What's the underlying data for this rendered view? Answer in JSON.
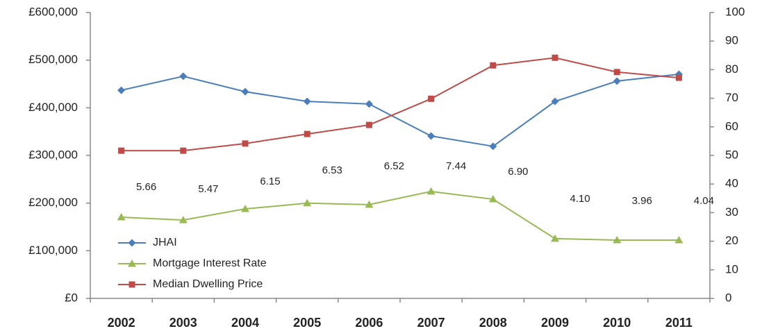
{
  "chart_data": {
    "type": "line",
    "categories": [
      "2002",
      "2003",
      "2004",
      "2005",
      "2006",
      "2007",
      "2008",
      "2009",
      "2010",
      "2011"
    ],
    "series": [
      {
        "name": "JHAI",
        "color": "#4a7ebb",
        "marker": "diamond",
        "axis": "y2",
        "values": [
          72.8,
          77.7,
          72.3,
          68.9,
          68.0,
          56.8,
          53.2,
          68.9,
          76.0,
          78.4
        ]
      },
      {
        "name": "Mortgage Interest Rate",
        "color": "#98b954",
        "marker": "triangle",
        "axis": "y2",
        "values": [
          28.4,
          27.4,
          31.3,
          33.3,
          32.8,
          37.4,
          34.7,
          20.9,
          20.4,
          20.4
        ]
      },
      {
        "name": "Median Dwelling Price",
        "color": "#be4b48",
        "marker": "square",
        "axis": "y",
        "values": [
          310000,
          310000,
          325000,
          345000,
          364000,
          419000,
          489000,
          505000,
          475000,
          463000
        ]
      }
    ],
    "annotations": [
      "5.66",
      "5.47",
      "6.15",
      "6.53",
      "6.52",
      "7.44",
      "6.90",
      "4.10",
      "3.96",
      "4.04"
    ],
    "ylim": [
      0,
      600000
    ],
    "yticks": [
      {
        "value": 0,
        "label": "£0"
      },
      {
        "value": 100000,
        "label": "£100,000"
      },
      {
        "value": 200000,
        "label": "£200,000"
      },
      {
        "value": 300000,
        "label": "£300,000"
      },
      {
        "value": 400000,
        "label": "£400,000"
      },
      {
        "value": 500000,
        "label": "£500,000"
      },
      {
        "value": 600000,
        "label": "£600,000"
      }
    ],
    "y2lim": [
      0,
      100
    ],
    "y2ticks": [
      0,
      10,
      20,
      30,
      40,
      50,
      60,
      70,
      80,
      90,
      100
    ],
    "grid": false,
    "legend": "lower left"
  }
}
